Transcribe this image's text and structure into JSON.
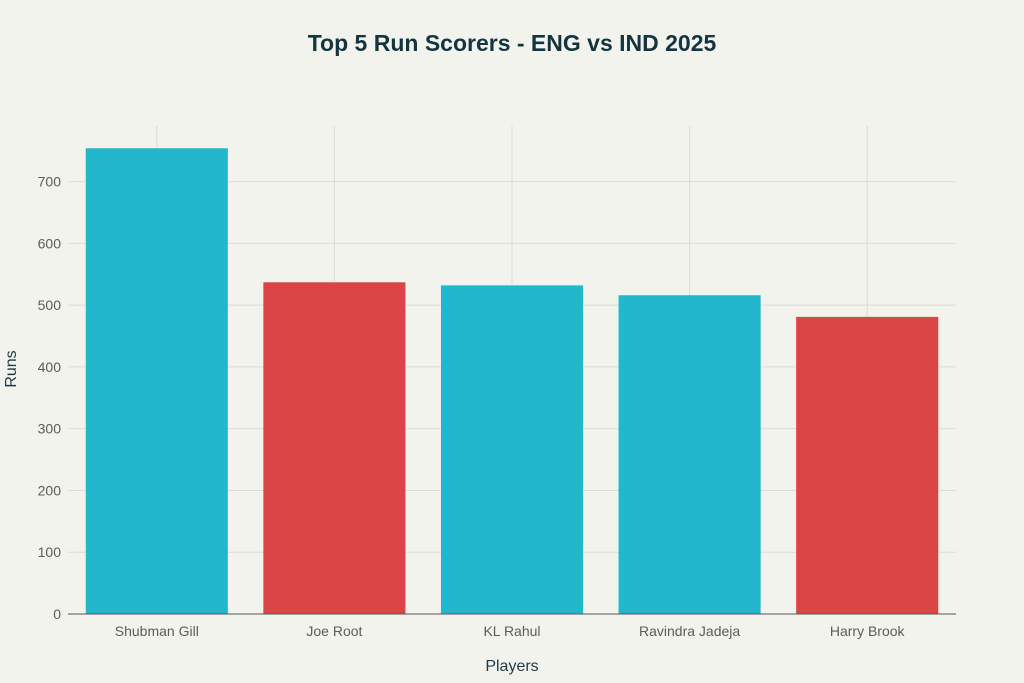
{
  "chart_data": {
    "type": "bar",
    "title": "Top 5 Run Scorers - ENG vs IND 2025",
    "xlabel": "Players",
    "ylabel": "Runs",
    "categories": [
      "Shubman Gill",
      "Joe Root",
      "KL Rahul",
      "Ravindra Jadeja",
      "Harry Brook"
    ],
    "values": [
      754,
      537,
      532,
      516,
      481
    ],
    "bar_colors": [
      "#21b8cd",
      "#db4545",
      "#21b8cd",
      "#21b8cd",
      "#db4545"
    ],
    "ylim": [
      0,
      790
    ],
    "yticks": [
      0,
      100,
      200,
      300,
      400,
      500,
      600,
      700
    ],
    "grid": true,
    "legend": "none"
  }
}
